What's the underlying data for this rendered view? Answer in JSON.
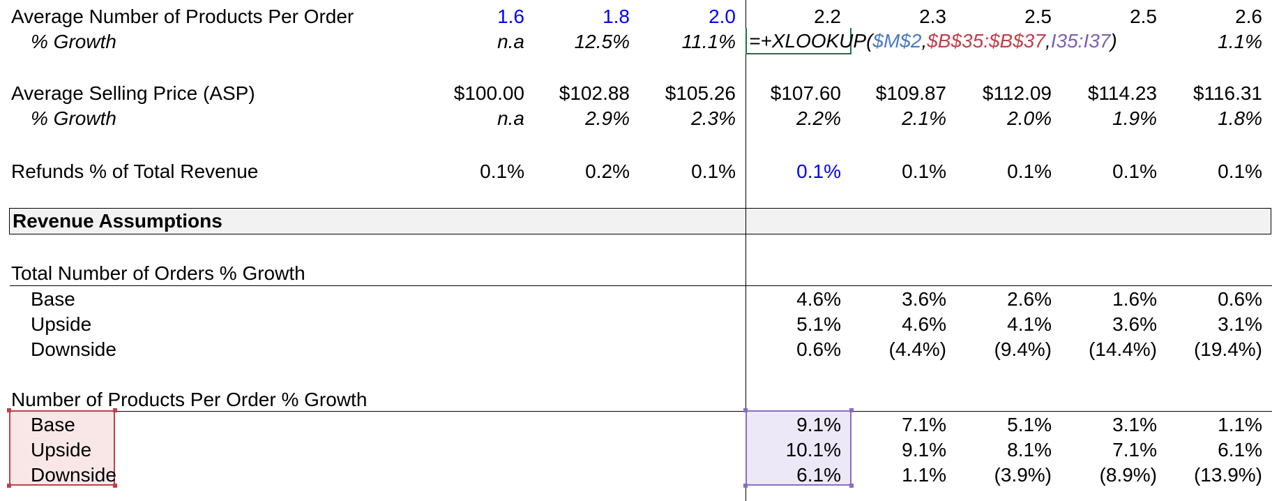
{
  "rows": {
    "avg_products": {
      "label": "Average Number of Products Per Order",
      "values": [
        "1.6",
        "1.8",
        "2.0",
        "2.2",
        "2.3",
        "2.5",
        "2.5",
        "2.6"
      ]
    },
    "avg_products_growth": {
      "label": "% Growth",
      "values": [
        "n.a",
        "12.5%",
        "11.1%",
        "",
        "",
        "",
        "",
        "1.1%"
      ]
    },
    "asp": {
      "label": "Average Selling Price (ASP)",
      "values": [
        "$100.00",
        "$102.88",
        "$105.26",
        "$107.60",
        "$109.87",
        "$112.09",
        "$114.23",
        "$116.31"
      ]
    },
    "asp_growth": {
      "label": "% Growth",
      "values": [
        "n.a",
        "2.9%",
        "2.3%",
        "2.2%",
        "2.1%",
        "2.0%",
        "1.9%",
        "1.8%"
      ]
    },
    "refunds": {
      "label": "Refunds % of Total Revenue",
      "values": [
        "0.1%",
        "0.2%",
        "0.1%",
        "0.1%",
        "0.1%",
        "0.1%",
        "0.1%",
        "0.1%"
      ]
    }
  },
  "section": {
    "title": "Revenue Assumptions"
  },
  "orders_growth": {
    "title": "Total Number of Orders % Growth",
    "base": {
      "label": "Base",
      "values": [
        "4.6%",
        "3.6%",
        "2.6%",
        "1.6%",
        "0.6%"
      ]
    },
    "upside": {
      "label": "Upside",
      "values": [
        "5.1%",
        "4.6%",
        "4.1%",
        "3.6%",
        "3.1%"
      ]
    },
    "downside": {
      "label": "Downside",
      "values": [
        "0.6%",
        "(4.4%)",
        "(9.4%)",
        "(14.4%)",
        "(19.4%)"
      ]
    }
  },
  "products_growth": {
    "title": "Number of Products Per Order % Growth",
    "base": {
      "label": "Base",
      "values": [
        "9.1%",
        "7.1%",
        "5.1%",
        "3.1%",
        "1.1%"
      ]
    },
    "upside": {
      "label": "Upside",
      "values": [
        "10.1%",
        "9.1%",
        "8.1%",
        "7.1%",
        "6.1%"
      ]
    },
    "downside": {
      "label": "Downside",
      "values": [
        "6.1%",
        "1.1%",
        "(3.9%)",
        "(8.9%)",
        "(13.9%)"
      ]
    }
  },
  "formula": {
    "prefix": "=+XLOOKUP(",
    "ref1": "$M$2",
    "comma1": ",",
    "ref2": "$B$35:$B$37",
    "comma2": ",",
    "ref3": "I35:I37",
    "suffix": ")"
  },
  "colors": {
    "input_blue": "#0000ff",
    "ref1": "#4a79c3",
    "ref2": "#c0404a",
    "ref3": "#7b5fb5",
    "active_border": "#1e7145"
  }
}
